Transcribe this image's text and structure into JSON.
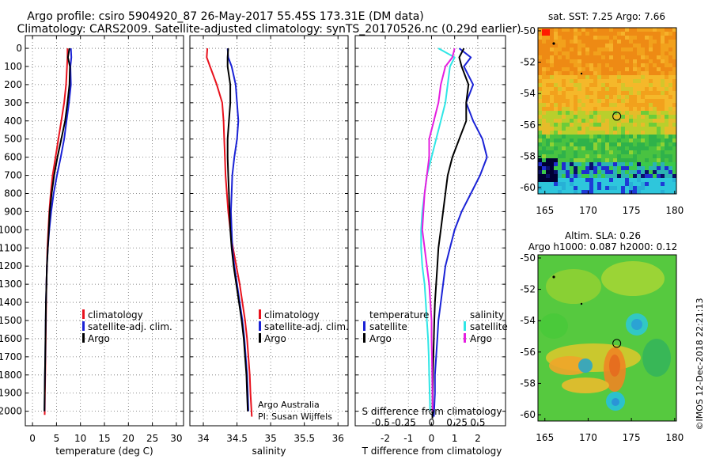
{
  "header": {
    "title_line1": "Argo profile: csiro 5904920_87 26-May-2017 55.45S 173.31E (DM data)",
    "title_line2": "Climatology: CARS2009. Satellite-adjusted climatology: synTS_20170526.nc (0.29d earlier)"
  },
  "depth_axis": {
    "ticks": [
      0,
      100,
      200,
      300,
      400,
      500,
      600,
      700,
      800,
      900,
      1000,
      1100,
      1200,
      1300,
      1400,
      1500,
      1600,
      1700,
      1800,
      1900,
      2000
    ],
    "range": [
      -70,
      2080
    ],
    "reversed": true
  },
  "colors": {
    "climatology": "#e8121d",
    "satellite": "#1a22d6",
    "argo": "#000000",
    "s_satellite": "#2fe6e6",
    "s_argo": "#e51ee0"
  },
  "chart_data": [
    {
      "type": "line",
      "panel": "temperature",
      "xlabel": "temperature (deg C)",
      "xlim": [
        -1.5,
        31.5
      ],
      "xticks": [
        0,
        5,
        10,
        15,
        20,
        25,
        30
      ],
      "legend": [
        "climatology",
        "satellite-adj. clim.",
        "Argo"
      ],
      "series": [
        {
          "name": "climatology",
          "color": "#e8121d",
          "x": [
            7.3,
            7.3,
            7.2,
            7.0,
            6.6,
            6.0,
            5.4,
            4.8,
            4.2,
            3.8,
            3.5,
            3.3,
            3.1,
            3.0,
            2.9,
            2.85,
            2.8,
            2.75,
            2.7,
            2.65,
            2.6,
            2.55
          ],
          "y": [
            0,
            50,
            100,
            200,
            300,
            400,
            500,
            600,
            700,
            800,
            900,
            1000,
            1100,
            1200,
            1300,
            1400,
            1500,
            1600,
            1700,
            1800,
            1900,
            2020
          ]
        },
        {
          "name": "satellite-adj. clim.",
          "color": "#1a22d6",
          "x": [
            8.0,
            8.1,
            7.9,
            8.0,
            7.6,
            7.1,
            6.6,
            5.9,
            5.1,
            4.4,
            3.9,
            3.5,
            3.2,
            3.0,
            2.9,
            2.8,
            2.75,
            2.7,
            2.65,
            2.6,
            2.55,
            2.5
          ],
          "y": [
            0,
            50,
            100,
            200,
            300,
            400,
            500,
            600,
            700,
            800,
            900,
            1000,
            1100,
            1200,
            1300,
            1400,
            1500,
            1600,
            1700,
            1800,
            1900,
            2000
          ]
        },
        {
          "name": "Argo",
          "color": "#000000",
          "x": [
            7.7,
            7.4,
            7.8,
            7.7,
            7.3,
            6.8,
            6.0,
            5.2,
            4.5,
            4.0,
            3.6,
            3.4,
            3.2,
            3.0,
            2.9,
            2.8,
            2.75,
            2.7,
            2.65,
            2.6,
            2.55,
            2.5
          ],
          "y": [
            0,
            50,
            100,
            200,
            300,
            400,
            500,
            600,
            700,
            800,
            900,
            1000,
            1100,
            1200,
            1300,
            1400,
            1500,
            1600,
            1700,
            1800,
            1900,
            2000
          ]
        }
      ]
    },
    {
      "type": "line",
      "panel": "salinity",
      "xlabel": "salinity",
      "xlim": [
        33.8,
        36.15
      ],
      "xticks": [
        34,
        34.5,
        35,
        35.5,
        36
      ],
      "legend": [
        "climatology",
        "satellite-adj. clim.",
        "Argo"
      ],
      "series": [
        {
          "name": "climatology",
          "color": "#e8121d",
          "x": [
            34.06,
            34.05,
            34.1,
            34.2,
            34.28,
            34.3,
            34.31,
            34.32,
            34.33,
            34.35,
            34.37,
            34.4,
            34.44,
            34.49,
            34.54,
            34.58,
            34.62,
            34.65,
            34.67,
            34.69,
            34.7,
            34.72
          ],
          "y": [
            0,
            50,
            100,
            200,
            300,
            400,
            500,
            600,
            700,
            800,
            900,
            1000,
            1100,
            1200,
            1300,
            1400,
            1500,
            1600,
            1700,
            1800,
            1900,
            2030
          ]
        },
        {
          "name": "satellite-adj. clim.",
          "color": "#1a22d6",
          "x": [
            34.36,
            34.37,
            34.42,
            34.48,
            34.5,
            34.52,
            34.5,
            34.46,
            34.43,
            34.42,
            34.41,
            34.42,
            34.43,
            34.46,
            34.5,
            34.54,
            34.58,
            34.61,
            34.63,
            34.65,
            34.66,
            34.67
          ],
          "y": [
            0,
            50,
            100,
            200,
            300,
            400,
            500,
            600,
            700,
            800,
            900,
            1000,
            1100,
            1200,
            1300,
            1400,
            1500,
            1600,
            1700,
            1800,
            1900,
            2000
          ]
        },
        {
          "name": "Argo",
          "color": "#000000",
          "x": [
            34.37,
            34.36,
            34.36,
            34.4,
            34.4,
            34.38,
            34.36,
            34.36,
            34.37,
            34.38,
            34.39,
            34.4,
            34.42,
            34.45,
            34.49,
            34.53,
            34.57,
            34.6,
            34.62,
            34.64,
            34.65,
            34.66
          ],
          "y": [
            0,
            50,
            100,
            200,
            300,
            400,
            500,
            600,
            700,
            800,
            900,
            1000,
            1100,
            1200,
            1300,
            1400,
            1500,
            1600,
            1700,
            1800,
            1900,
            2000
          ]
        }
      ]
    },
    {
      "type": "line",
      "panel": "difference",
      "xlabel": "T difference from climatology",
      "xlim": [
        -3.3,
        3.2
      ],
      "xticks": [
        -2,
        -1,
        0,
        1,
        2
      ],
      "top_label": "S difference from climatology",
      "s_ticks": [
        "-0.5",
        "-0.25",
        "0",
        "0.25",
        "0.5"
      ],
      "s_tick_positions": [
        -2.2,
        -1.2,
        0,
        1.1,
        2.0
      ],
      "legend_left_title": "temperature",
      "legend_left": [
        "satellite",
        "Argo"
      ],
      "legend_right_title": "salinity",
      "legend_right": [
        "satellite",
        "Argo"
      ],
      "series": [
        {
          "name": "temperature satellite",
          "color": "#1a22d6",
          "x": [
            1.2,
            1.7,
            1.4,
            1.8,
            1.5,
            1.8,
            2.2,
            2.4,
            2.1,
            1.7,
            1.3,
            1.0,
            0.8,
            0.6,
            0.5,
            0.4,
            0.3,
            0.25,
            0.2,
            0.15,
            0.15,
            0.1
          ],
          "y": [
            0,
            50,
            100,
            200,
            300,
            400,
            500,
            600,
            700,
            800,
            900,
            1000,
            1100,
            1200,
            1300,
            1400,
            1500,
            1600,
            1700,
            1800,
            1900,
            2030
          ]
        },
        {
          "name": "temperature Argo",
          "color": "#000000",
          "x": [
            1.4,
            1.2,
            1.3,
            1.6,
            1.5,
            1.5,
            1.2,
            0.9,
            0.7,
            0.6,
            0.5,
            0.4,
            0.3,
            0.25,
            0.2,
            0.15,
            0.12,
            0.1,
            0.08,
            0.06,
            0.05,
            0.04
          ],
          "y": [
            0,
            50,
            100,
            200,
            300,
            400,
            500,
            600,
            700,
            800,
            900,
            1000,
            1100,
            1200,
            1300,
            1400,
            1500,
            1600,
            1700,
            1800,
            1900,
            2040
          ]
        },
        {
          "name": "salinity satellite",
          "color": "#2fe6e6",
          "x": [
            0.3,
            1.0,
            0.8,
            0.7,
            0.6,
            0.4,
            0.2,
            0.0,
            -0.2,
            -0.3,
            -0.4,
            -0.45,
            -0.45,
            -0.4,
            -0.3,
            -0.25,
            -0.2,
            -0.15,
            -0.12,
            -0.1,
            -0.08,
            -0.06
          ],
          "y": [
            0,
            50,
            100,
            200,
            300,
            400,
            500,
            600,
            700,
            800,
            900,
            1000,
            1100,
            1200,
            1300,
            1400,
            1500,
            1600,
            1700,
            1800,
            1900,
            2000
          ]
        },
        {
          "name": "salinity Argo",
          "color": "#e51ee0",
          "x": [
            1.0,
            0.9,
            0.6,
            0.4,
            0.3,
            0.1,
            -0.1,
            -0.1,
            -0.2,
            -0.3,
            -0.35,
            -0.4,
            -0.3,
            -0.2,
            -0.1,
            -0.05,
            0.0,
            0.0,
            0.02,
            0.03,
            0.04,
            0.05
          ],
          "y": [
            0,
            50,
            100,
            200,
            300,
            400,
            500,
            600,
            700,
            800,
            900,
            1000,
            1100,
            1200,
            1300,
            1400,
            1500,
            1600,
            1700,
            1800,
            1900,
            2000
          ]
        }
      ]
    },
    {
      "type": "heatmap",
      "panel": "sst_map",
      "title": "sat. SST: 7.25 Argo: 7.66",
      "xticks": [
        165,
        170,
        175,
        180
      ],
      "yticks": [
        -50,
        -52,
        -54,
        -56,
        -58,
        -60
      ],
      "xlim": [
        164.2,
        180.2
      ],
      "ylim": [
        -60.4,
        -49.8
      ],
      "float_position": [
        173.31,
        -55.45
      ]
    },
    {
      "type": "heatmap",
      "panel": "sla_map",
      "title_line1": "Altim. SLA: 0.26",
      "title_line2": "Argo h1000: 0.087 h2000: 0.12",
      "xticks": [
        165,
        170,
        175,
        180
      ],
      "yticks": [
        -50,
        -52,
        -54,
        -56,
        -58,
        -60
      ],
      "xlim": [
        164.2,
        180.2
      ],
      "ylim": [
        -60.4,
        -49.8
      ],
      "float_position": [
        173.31,
        -55.45
      ]
    }
  ],
  "annotations": {
    "credit_line1": "Argo Australia",
    "credit_line2": "PI: Susan Wijffels",
    "watermark": "©IMOS 12-Dec-2018 22:21:13"
  }
}
